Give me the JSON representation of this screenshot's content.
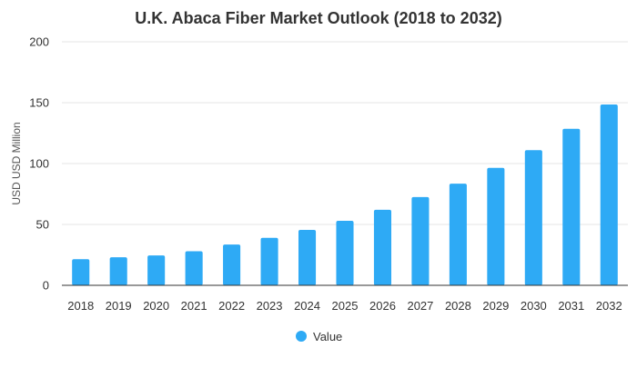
{
  "chart_data": {
    "type": "bar",
    "title": "U.K. Abaca Fiber Market Outlook (2018 to 2032)",
    "xlabel": "",
    "ylabel": "USD USD Million",
    "categories": [
      "2018",
      "2019",
      "2020",
      "2021",
      "2022",
      "2023",
      "2024",
      "2025",
      "2026",
      "2027",
      "2028",
      "2029",
      "2030",
      "2031",
      "2032"
    ],
    "series": [
      {
        "name": "Value",
        "color": "#2eaaf5",
        "values": [
          21.5,
          23,
          24.5,
          28,
          33.5,
          39,
          45.5,
          53,
          62,
          72.5,
          83.5,
          96.5,
          111,
          128.5,
          148.5
        ]
      }
    ],
    "ylim": [
      0,
      200
    ],
    "yticks": [
      0,
      50,
      100,
      150,
      200
    ],
    "grid": true,
    "legend_position": "bottom-center"
  }
}
